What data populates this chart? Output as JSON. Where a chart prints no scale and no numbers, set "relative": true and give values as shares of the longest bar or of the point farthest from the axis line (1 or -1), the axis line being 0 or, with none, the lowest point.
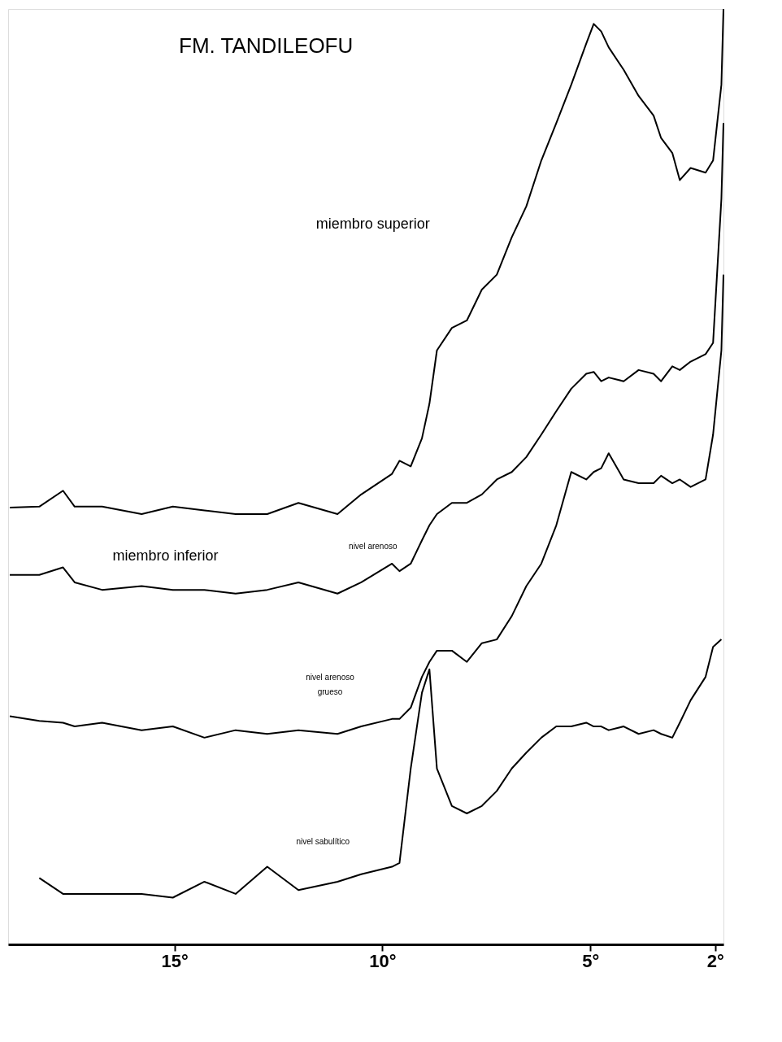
{
  "chart_data": {
    "type": "line",
    "title": "FM. TANDILEOFU",
    "relative": true,
    "x": [
      18.96,
      18.25,
      17.68,
      17.4,
      16.74,
      15.79,
      15.04,
      14.28,
      13.53,
      12.77,
      12.02,
      11.08,
      10.51,
      9.77,
      9.59,
      9.32,
      9.05,
      8.87,
      8.69,
      8.33,
      7.97,
      7.61,
      7.25,
      6.89,
      6.54,
      6.18,
      5.82,
      5.46,
      5.1,
      4.92,
      4.74,
      4.56,
      4.2,
      3.84,
      3.48,
      3.3,
      3.03,
      2.85,
      2.59,
      2.23,
      2.05,
      1.85,
      1.8
    ],
    "series": [
      {
        "color": "#000000",
        "values": [
          0.467,
          0.468,
          0.485,
          0.468,
          0.468,
          0.46,
          0.468,
          0.464,
          0.46,
          0.46,
          0.472,
          0.46,
          0.481,
          0.503,
          0.517,
          0.511,
          0.541,
          0.578,
          0.635,
          0.659,
          0.667,
          0.7,
          0.716,
          0.756,
          0.789,
          0.838,
          0.878,
          0.919,
          0.963,
          0.984,
          0.976,
          0.959,
          0.935,
          0.907,
          0.886,
          0.862,
          0.846,
          0.817,
          0.83,
          0.825,
          0.838,
          0.919,
          1.0
        ]
      },
      {
        "color": "#000000",
        "values": [
          0.395,
          0.395,
          0.403,
          0.387,
          0.379,
          0.383,
          0.379,
          0.379,
          0.375,
          0.379,
          0.387,
          0.375,
          0.387,
          0.407,
          0.399,
          0.407,
          0.432,
          0.448,
          0.46,
          0.472,
          0.472,
          0.481,
          0.497,
          0.505,
          0.521,
          0.545,
          0.57,
          0.594,
          0.61,
          0.612,
          0.602,
          0.606,
          0.602,
          0.614,
          0.61,
          0.602,
          0.618,
          0.614,
          0.623,
          0.631,
          0.643,
          0.797,
          0.878
        ]
      },
      {
        "color": "#000000",
        "values": [
          0.244,
          0.239,
          0.237,
          0.233,
          0.237,
          0.229,
          0.233,
          0.221,
          0.229,
          0.225,
          0.229,
          0.225,
          0.233,
          0.241,
          0.241,
          0.253,
          0.286,
          0.302,
          0.314,
          0.314,
          0.302,
          0.322,
          0.326,
          0.351,
          0.383,
          0.407,
          0.448,
          0.505,
          0.497,
          0.505,
          0.509,
          0.525,
          0.497,
          0.493,
          0.493,
          0.501,
          0.493,
          0.497,
          0.489,
          0.497,
          0.545,
          0.635,
          0.716
        ]
      },
      {
        "color": "#000000",
        "values": [
          null,
          0.071,
          0.054,
          0.054,
          0.054,
          0.054,
          0.05,
          0.067,
          0.054,
          0.083,
          0.058,
          0.067,
          0.075,
          0.083,
          0.087,
          0.188,
          0.269,
          0.294,
          0.188,
          0.148,
          0.14,
          0.148,
          0.164,
          0.188,
          0.205,
          0.221,
          0.233,
          0.233,
          0.237,
          0.233,
          0.233,
          0.229,
          0.233,
          0.225,
          0.229,
          0.225,
          0.221,
          0.237,
          0.261,
          0.286,
          0.318,
          0.326,
          null
        ]
      }
    ],
    "xlim": [
      19,
      1.8
    ],
    "xticks": [
      {
        "value": 15,
        "label": "15°"
      },
      {
        "value": 10,
        "label": "10°"
      },
      {
        "value": 5,
        "label": "5°"
      },
      {
        "value": 2,
        "label": "2°"
      }
    ],
    "annotations": [
      "miembro superior",
      "miembro inferior",
      "nivel arenoso",
      "nivel arenoso",
      "grueso",
      "nivel sabulítico"
    ],
    "grid": false,
    "legend": false,
    "line_style": "solid",
    "marker": "none"
  }
}
